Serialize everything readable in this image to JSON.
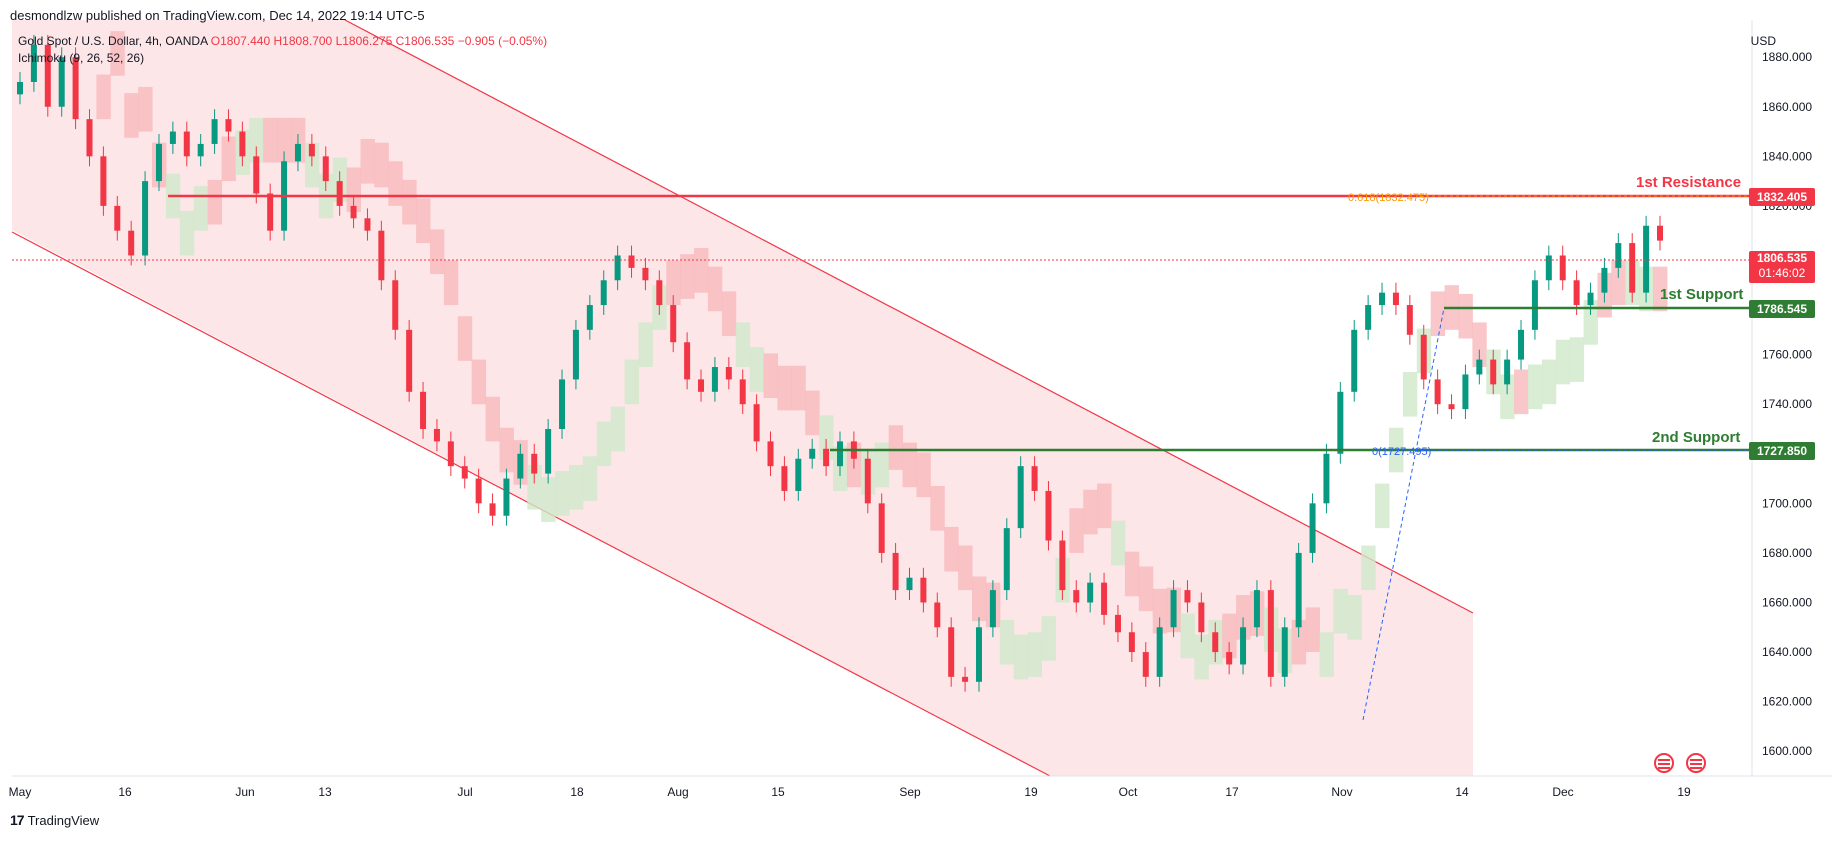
{
  "header": {
    "published_by": "desmondlzw published on TradingView.com, Dec 14, 2022 19:14 UTC-5"
  },
  "legend": {
    "symbol": "Gold Spot / U.S. Dollar, 4h, OANDA",
    "open": "O1807.440",
    "high": "H1808.700",
    "low": "L1806.275",
    "close": "C1806.535",
    "change": "−0.905 (−0.05%)",
    "indicator": "Ichimoku (9, 26, 52, 26)"
  },
  "axis": {
    "currency": "USD"
  },
  "levels": {
    "resistance_1": {
      "label": "1st Resistance",
      "price": "1832.405",
      "fib_label": "0.618(1832.475)"
    },
    "current": {
      "price": "1806.535",
      "countdown": "01:46:02"
    },
    "support_1": {
      "label": "1st Support",
      "price": "1786.545"
    },
    "support_2": {
      "label": "2nd Support",
      "price": "1727.850",
      "fib_label": "0(1727.495)"
    }
  },
  "footer": {
    "brand": "TradingView",
    "brand_mark": "17"
  },
  "colors": {
    "resistance": "#f23645",
    "support": "#2e7d32",
    "channel": "#f23645",
    "channel_fill": "#fde3e5",
    "cloud_bear": "#f8b9bc",
    "cloud_bull": "#cfe8c9",
    "up_candle": "#089981",
    "down_candle": "#f23645"
  },
  "chart_data": {
    "type": "line",
    "title": "",
    "ylabel": "",
    "xlabel": "",
    "y_ticks": [
      1600,
      1620,
      1640,
      1660,
      1680,
      1700,
      1720,
      1740,
      1760,
      1780,
      1800,
      1820,
      1840,
      1860,
      1880
    ],
    "y_tick_labels": [
      "1600.000",
      "1620.000",
      "1640.000",
      "1660.000",
      "1680.000",
      "1700.000",
      "1720.000",
      "1740.000",
      "1760.000",
      "1780.000",
      "1800.000",
      "1820.000",
      "1840.000",
      "1860.000",
      "1880.000"
    ],
    "x_tick_labels": [
      "May",
      "16",
      "Jun",
      "13",
      "Jul",
      "18",
      "Aug",
      "15",
      "Sep",
      "19",
      "Oct",
      "17",
      "Nov",
      "14",
      "Dec",
      "19"
    ],
    "ylim": [
      1590,
      1895
    ],
    "grid": false,
    "horizontal_levels": [
      1832.405,
      1786.545,
      1727.85
    ],
    "series": [
      {
        "values": [
          1870,
          1885,
          1860,
          1880,
          1855,
          1840,
          1820,
          1810,
          1800,
          1830,
          1845,
          1850,
          1840,
          1845,
          1855,
          1850,
          1840,
          1825,
          1810,
          1838,
          1845,
          1840,
          1830,
          1820,
          1815,
          1810,
          1790,
          1770,
          1745,
          1730,
          1725,
          1715,
          1710,
          1700,
          1695,
          1710,
          1720,
          1712,
          1730,
          1750,
          1770,
          1780,
          1790,
          1800,
          1795,
          1790,
          1780,
          1765,
          1750,
          1745,
          1755,
          1750,
          1740,
          1725,
          1715,
          1705,
          1718,
          1722,
          1715,
          1725,
          1718,
          1700,
          1680,
          1665,
          1670,
          1660,
          1650,
          1630,
          1628,
          1650,
          1665,
          1690,
          1715,
          1705,
          1685,
          1665,
          1660,
          1668,
          1655,
          1648,
          1640,
          1630,
          1650,
          1665,
          1660,
          1648,
          1640,
          1635,
          1650,
          1665,
          1630,
          1650,
          1680,
          1700,
          1720,
          1745,
          1770,
          1780,
          1785,
          1780,
          1768,
          1750,
          1740,
          1738,
          1752,
          1758,
          1748,
          1758,
          1770,
          1790,
          1800,
          1790,
          1780,
          1785,
          1795,
          1805,
          1785,
          1812,
          1806
        ]
      }
    ]
  }
}
